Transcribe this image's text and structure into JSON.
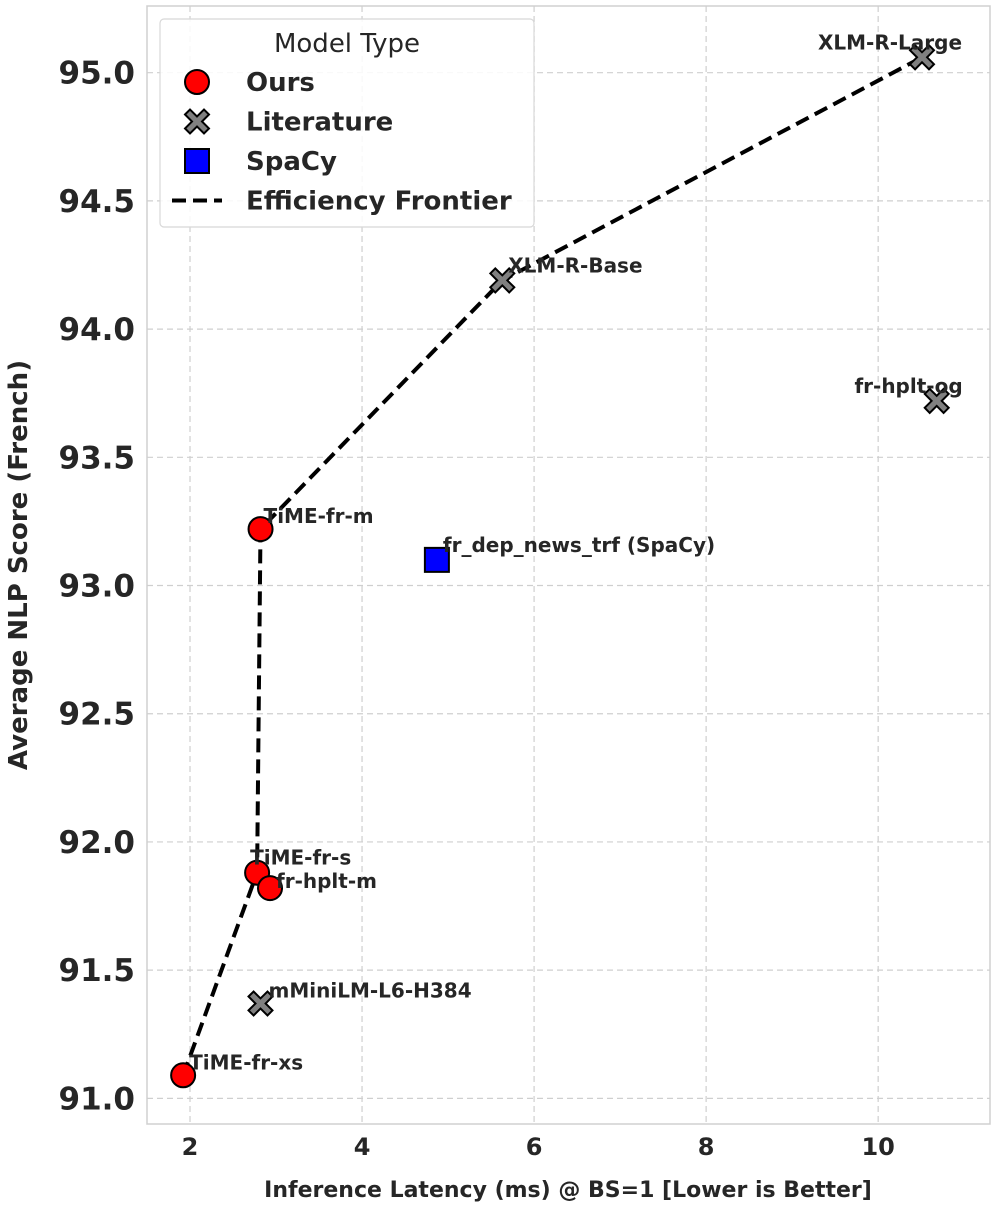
{
  "chart_data": {
    "type": "scatter",
    "title": "",
    "xlabel": "Inference Latency (ms) @ BS=1 [Lower is Better]",
    "ylabel": "Average NLP Score (French)",
    "xlim": [
      1.5,
      11.3
    ],
    "ylim": [
      90.9,
      95.26
    ],
    "xticks": [
      "2",
      "4",
      "6",
      "8",
      "10"
    ],
    "yticks": [
      "91.0",
      "91.5",
      "92.0",
      "92.5",
      "93.0",
      "93.5",
      "94.0",
      "94.5",
      "95.0"
    ],
    "grid": true,
    "legend": {
      "title": "Model Type",
      "placement": "top-left",
      "entries": [
        "Ours",
        "Literature",
        "SpaCy",
        "Efficiency Frontier"
      ]
    },
    "colors": {
      "ours": "#ff0000",
      "literature": "#808080",
      "spacy": "#0000ff",
      "frontier": "#000000"
    },
    "series": [
      {
        "name": "Ours",
        "marker": "circle",
        "points": [
          {
            "label": "TiME-fr-xs",
            "x": 1.92,
            "y": 91.09
          },
          {
            "label": "TiME-fr-s",
            "x": 2.78,
            "y": 91.88
          },
          {
            "label": "fr-hplt-m",
            "x": 2.93,
            "y": 91.82
          },
          {
            "label": "TiME-fr-m",
            "x": 2.82,
            "y": 93.22
          }
        ]
      },
      {
        "name": "Literature",
        "marker": "x",
        "points": [
          {
            "label": "mMiniLM-L6-H384",
            "x": 2.82,
            "y": 91.37
          },
          {
            "label": "XLM-R-Base",
            "x": 5.63,
            "y": 94.19
          },
          {
            "label": "XLM-R-Large",
            "x": 10.51,
            "y": 95.06
          },
          {
            "label": "fr-hplt-og",
            "x": 10.68,
            "y": 93.72
          }
        ]
      },
      {
        "name": "SpaCy",
        "marker": "square",
        "points": [
          {
            "label": "fr_dep_news_trf (SpaCy)",
            "x": 4.87,
            "y": 93.1
          }
        ]
      }
    ],
    "frontier": {
      "name": "Efficiency Frontier",
      "points": [
        {
          "x": 1.92,
          "y": 91.09
        },
        {
          "x": 2.78,
          "y": 91.88
        },
        {
          "x": 2.82,
          "y": 93.22
        },
        {
          "x": 5.63,
          "y": 94.19
        },
        {
          "x": 10.51,
          "y": 95.06
        }
      ]
    }
  }
}
